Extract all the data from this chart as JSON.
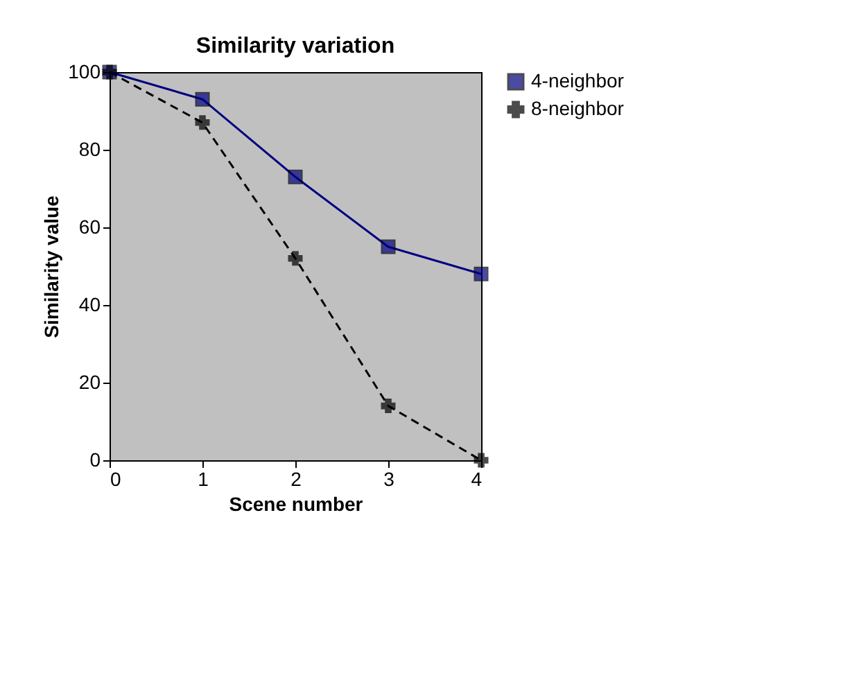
{
  "chart_data": {
    "type": "line",
    "title": "Similarity variation",
    "xlabel": "Scene number",
    "ylabel": "Similarity value",
    "x": [
      0,
      1,
      2,
      3,
      4
    ],
    "series": [
      {
        "name": "4-neighbor",
        "color": "#000080",
        "values": [
          100,
          93,
          73,
          55,
          48
        ],
        "marker": "square",
        "line_style": "solid"
      },
      {
        "name": "8-neighbor",
        "color": "#000000",
        "values": [
          100,
          87,
          52,
          14,
          0
        ],
        "marker": "cross",
        "line_style": "dashed"
      }
    ],
    "xlim": [
      0,
      4
    ],
    "xticks": [
      0,
      1,
      2,
      3,
      4
    ],
    "ylim": [
      0,
      100
    ],
    "yticks": [
      0,
      20,
      40,
      60,
      80,
      100
    ],
    "grid": false,
    "legend": "right"
  }
}
